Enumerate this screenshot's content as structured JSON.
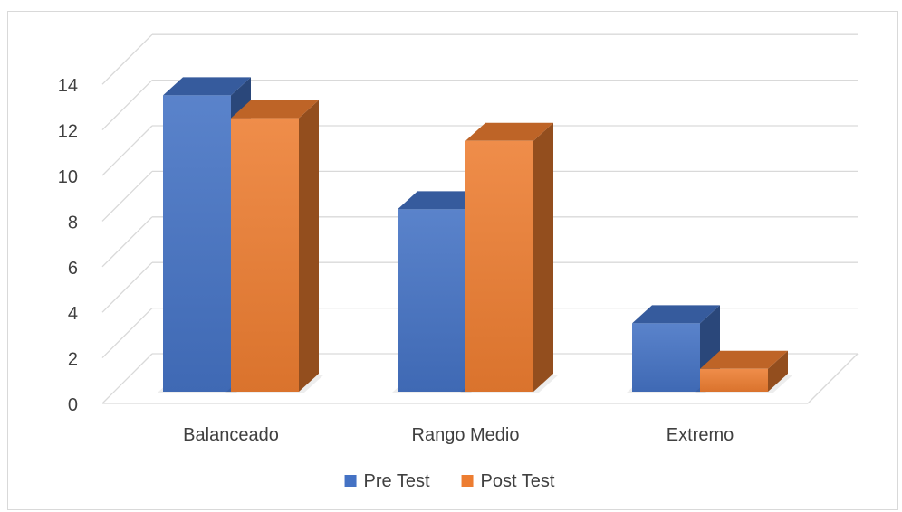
{
  "chart_data": {
    "type": "bar",
    "style": "3d-clustered-column",
    "categories": [
      "Balanceado",
      "Rango Medio",
      "Extremo"
    ],
    "series": [
      {
        "name": "Pre Test",
        "values": [
          13,
          8,
          3
        ],
        "color": "#4472C4"
      },
      {
        "name": "Post Test",
        "values": [
          12,
          11,
          1
        ],
        "color": "#ED7D31"
      }
    ],
    "ylim": [
      0,
      14
    ],
    "yticks": [
      0,
      2,
      4,
      6,
      8,
      10,
      12,
      14
    ],
    "grid": true,
    "legend": "bottom"
  }
}
